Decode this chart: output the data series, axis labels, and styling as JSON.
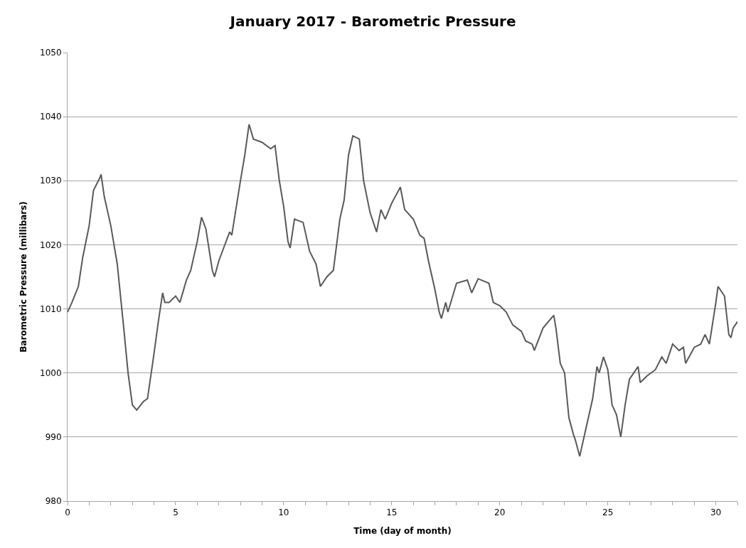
{
  "chart_data": {
    "type": "line",
    "title": "January 2017 - Barometric Pressure",
    "xlabel": "Time (day of month)",
    "ylabel": "Barometric Pressure (millibars)",
    "x": [
      0,
      0.2,
      0.5,
      0.7,
      1.0,
      1.2,
      1.5,
      1.55,
      1.7,
      2.0,
      2.3,
      2.6,
      2.8,
      3.0,
      3.2,
      3.5,
      3.7,
      4.0,
      4.2,
      4.4,
      4.5,
      4.7,
      5.0,
      5.2,
      5.5,
      5.7,
      6.0,
      6.2,
      6.4,
      6.7,
      6.8,
      7.0,
      7.5,
      7.6,
      8.0,
      8.2,
      8.4,
      8.6,
      9.0,
      9.4,
      9.6,
      9.8,
      10.0,
      10.2,
      10.3,
      10.5,
      10.9,
      11.2,
      11.5,
      11.7,
      12.0,
      12.3,
      12.6,
      12.8,
      13.0,
      13.2,
      13.5,
      13.7,
      14.0,
      14.3,
      14.5,
      14.7,
      15.0,
      15.4,
      15.6,
      16.0,
      16.3,
      16.5,
      16.7,
      17.0,
      17.2,
      17.3,
      17.5,
      17.6,
      18.0,
      18.5,
      18.7,
      19.0,
      19.5,
      19.7,
      20.0,
      20.3,
      20.6,
      21.0,
      21.2,
      21.5,
      21.6,
      22.0,
      22.5,
      22.6,
      22.8,
      23.0,
      23.2,
      23.4,
      23.5,
      23.7,
      24.0,
      24.3,
      24.5,
      24.6,
      24.8,
      25.0,
      25.2,
      25.4,
      25.6,
      25.8,
      26.0,
      26.4,
      26.5,
      26.8,
      27.2,
      27.5,
      27.7,
      28.0,
      28.3,
      28.5,
      28.6,
      29.0,
      29.3,
      29.5,
      29.7,
      30.0,
      30.1,
      30.4,
      30.6,
      30.7,
      30.8,
      31.0
    ],
    "series": [
      {
        "color": "#595959",
        "values": [
          1009.5,
          1011,
          1013.5,
          1018,
          1023,
          1028.5,
          1030.5,
          1031,
          1027.5,
          1023,
          1017,
          1007,
          1000,
          995,
          994.2,
          995.5,
          996,
          1003,
          1008,
          1012.5,
          1011,
          1011,
          1012,
          1011,
          1014.5,
          1016,
          1020.5,
          1024.3,
          1022.5,
          1016,
          1015,
          1017.5,
          1022,
          1021.5,
          1030,
          1034,
          1038.8,
          1036.5,
          1036,
          1035,
          1035.5,
          1030,
          1026,
          1020.5,
          1019.5,
          1024,
          1023.5,
          1019,
          1017,
          1013.5,
          1015,
          1016,
          1024,
          1027,
          1034,
          1037,
          1036.5,
          1030,
          1025,
          1022,
          1025.5,
          1024,
          1026.5,
          1029,
          1025.5,
          1024,
          1021.5,
          1021,
          1017.5,
          1013,
          1009.5,
          1008.5,
          1011,
          1009.5,
          1014,
          1014.5,
          1012.5,
          1014.7,
          1014,
          1011,
          1010.5,
          1009.5,
          1007.5,
          1006.5,
          1005,
          1004.5,
          1003.5,
          1007,
          1009,
          1007,
          1001.5,
          1000,
          993,
          990.5,
          989.5,
          987,
          991.5,
          996,
          1001,
          1000,
          1002.5,
          1000.5,
          995,
          993.5,
          990,
          995,
          999,
          1001,
          998.5,
          999.5,
          1000.5,
          1002.5,
          1001.5,
          1004.5,
          1003.5,
          1004,
          1001.5,
          1004,
          1004.5,
          1006,
          1004.5,
          1011,
          1013.5,
          1012,
          1006,
          1005.5,
          1007,
          1008
        ]
      }
    ],
    "xlim": [
      0,
      31
    ],
    "xticks": [
      0,
      {
        "value": 1,
        "label": null
      },
      {
        "value": 2,
        "label": null
      },
      {
        "value": 3,
        "label": null
      },
      {
        "value": 4,
        "label": null
      },
      5,
      {
        "value": 6,
        "label": null
      },
      {
        "value": 7,
        "label": null
      },
      {
        "value": 8,
        "label": null
      },
      {
        "value": 9,
        "label": null
      },
      10,
      {
        "value": 11,
        "label": null
      },
      {
        "value": 12,
        "label": null
      },
      {
        "value": 13,
        "label": null
      },
      {
        "value": 14,
        "label": null
      },
      15,
      {
        "value": 16,
        "label": null
      },
      {
        "value": 17,
        "label": null
      },
      {
        "value": 18,
        "label": null
      },
      {
        "value": 19,
        "label": null
      },
      20,
      {
        "value": 21,
        "label": null
      },
      {
        "value": 22,
        "label": null
      },
      {
        "value": 23,
        "label": null
      },
      {
        "value": 24,
        "label": null
      },
      25,
      {
        "value": 26,
        "label": null
      },
      {
        "value": 27,
        "label": null
      },
      {
        "value": 28,
        "label": null
      },
      {
        "value": 29,
        "label": null
      },
      30,
      {
        "value": 31,
        "label": null
      }
    ],
    "ylim": [
      980,
      1050
    ],
    "yticks": [
      980,
      990,
      1000,
      1010,
      1020,
      1030,
      1040,
      1050
    ],
    "grid": "y",
    "marker": "none",
    "line_style": "solid"
  }
}
